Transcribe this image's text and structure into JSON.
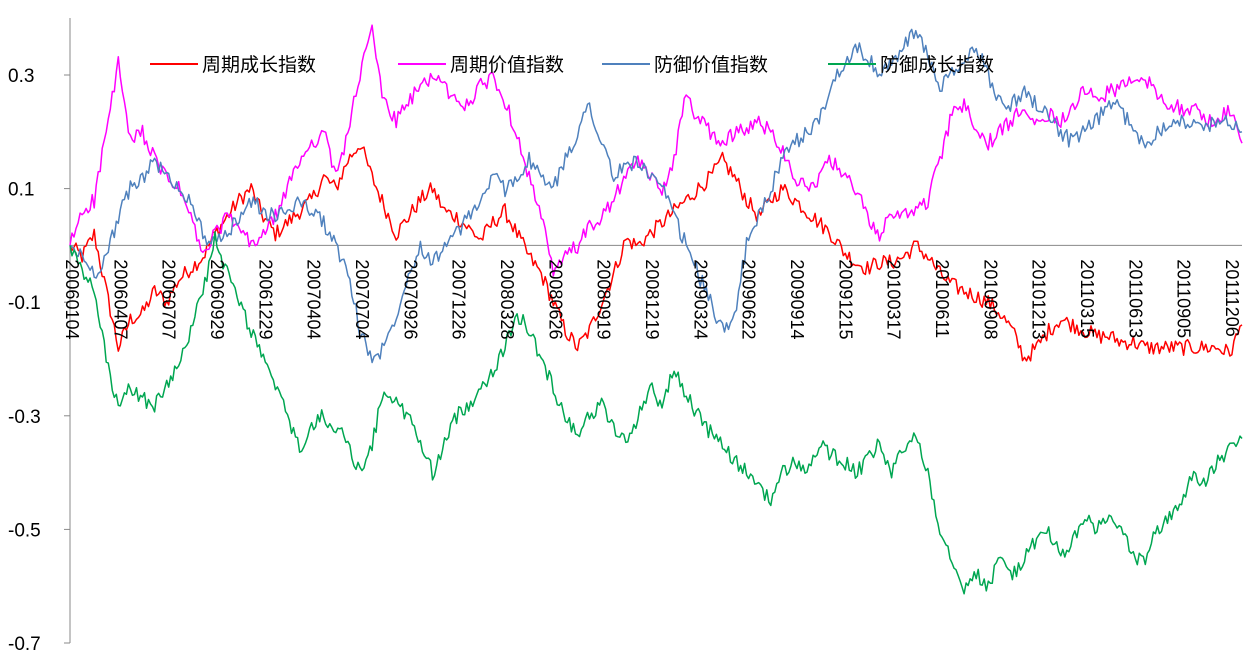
{
  "chart_data": {
    "type": "line",
    "ylim": [
      -0.7,
      0.4
    ],
    "y_ticks": [
      0.3,
      0.1,
      -0.1,
      -0.3,
      -0.5,
      -0.7
    ],
    "y_tick_labels": [
      "0.3",
      "0.1",
      "-0.1",
      "-0.3",
      "-0.5",
      "-0.7"
    ],
    "x_tick_labels": [
      "20060104",
      "20060407",
      "20060707",
      "20060929",
      "20061229",
      "20070404",
      "20070704",
      "20070926",
      "20071226",
      "20080328",
      "20080626",
      "20080919",
      "20081219",
      "20090324",
      "20090622",
      "20090914",
      "20091215",
      "20100317",
      "20100611",
      "20100908",
      "20101213",
      "20110315",
      "20110613",
      "20110905",
      "20111206"
    ],
    "grid": false,
    "legend_position": "top",
    "series": [
      {
        "name": "周期成长指数",
        "color": "#FF0000",
        "values": [
          0,
          -0.02,
          0.02,
          -0.08,
          -0.18,
          -0.13,
          -0.12,
          -0.08,
          -0.1,
          -0.06,
          -0.04,
          -0.02,
          0.02,
          0.05,
          0.08,
          0.1,
          0.05,
          0.02,
          0.04,
          0.06,
          0.08,
          0.12,
          0.1,
          0.15,
          0.18,
          0.12,
          0.07,
          0.02,
          0.05,
          0.08,
          0.1,
          0.06,
          0.05,
          0.03,
          0.01,
          0.04,
          0.06,
          0.02,
          -0.02,
          -0.05,
          -0.1,
          -0.15,
          -0.18,
          -0.15,
          -0.1,
          -0.05,
          0.01,
          0.0,
          0.02,
          0.04,
          0.06,
          0.08,
          0.1,
          0.12,
          0.15,
          0.12,
          0.08,
          0.05,
          0.08,
          0.1,
          0.08,
          0.06,
          0.04,
          0.02,
          -0.01,
          -0.03,
          -0.04,
          -0.03,
          -0.03,
          -0.02,
          0.0,
          -0.02,
          -0.05,
          -0.07,
          -0.08,
          -0.09,
          -0.1,
          -0.12,
          -0.15,
          -0.2,
          -0.18,
          -0.15,
          -0.13,
          -0.14,
          -0.15,
          -0.16,
          -0.16,
          -0.17,
          -0.17,
          -0.18,
          -0.18,
          -0.18,
          -0.18,
          -0.18,
          -0.18,
          -0.18,
          -0.19,
          -0.14
        ]
      },
      {
        "name": "周期价值指数",
        "color": "#FF00FF",
        "values": [
          0,
          0.06,
          0.08,
          0.2,
          0.32,
          0.18,
          0.2,
          0.15,
          0.12,
          0.1,
          0.05,
          -0.02,
          0.02,
          0.05,
          0.03,
          0.0,
          0.02,
          0.05,
          0.1,
          0.15,
          0.18,
          0.2,
          0.12,
          0.2,
          0.3,
          0.38,
          0.25,
          0.22,
          0.25,
          0.28,
          0.3,
          0.28,
          0.25,
          0.25,
          0.28,
          0.3,
          0.25,
          0.2,
          0.12,
          0.05,
          -0.05,
          -0.02,
          0.0,
          0.03,
          0.05,
          0.08,
          0.12,
          0.15,
          0.12,
          0.1,
          0.15,
          0.27,
          0.22,
          0.2,
          0.18,
          0.2,
          0.2,
          0.22,
          0.2,
          0.17,
          0.12,
          0.1,
          0.12,
          0.15,
          0.12,
          0.1,
          0.05,
          0.02,
          0.05,
          0.06,
          0.06,
          0.08,
          0.15,
          0.23,
          0.25,
          0.2,
          0.18,
          0.2,
          0.22,
          0.25,
          0.22,
          0.23,
          0.22,
          0.25,
          0.27,
          0.26,
          0.27,
          0.28,
          0.29,
          0.29,
          0.27,
          0.25,
          0.24,
          0.24,
          0.22,
          0.22,
          0.24,
          0.18
        ]
      },
      {
        "name": "防御价值指数",
        "color": "#4F81BD",
        "values": [
          0,
          -0.02,
          -0.05,
          -0.02,
          0.05,
          0.1,
          0.12,
          0.15,
          0.12,
          0.1,
          0.08,
          0.02,
          0.0,
          0.02,
          0.05,
          0.08,
          0.06,
          0.05,
          0.06,
          0.08,
          0.06,
          0.04,
          0.0,
          -0.05,
          -0.15,
          -0.2,
          -0.18,
          -0.12,
          -0.05,
          0.0,
          -0.03,
          0.0,
          0.02,
          0.05,
          0.08,
          0.12,
          0.1,
          0.12,
          0.15,
          0.12,
          0.1,
          0.15,
          0.2,
          0.25,
          0.18,
          0.12,
          0.14,
          0.15,
          0.12,
          0.1,
          0.05,
          0.0,
          -0.05,
          -0.1,
          -0.15,
          -0.12,
          0.0,
          0.05,
          0.1,
          0.15,
          0.18,
          0.2,
          0.22,
          0.28,
          0.32,
          0.35,
          0.33,
          0.3,
          0.32,
          0.35,
          0.38,
          0.33,
          0.28,
          0.3,
          0.32,
          0.35,
          0.3,
          0.25,
          0.25,
          0.27,
          0.25,
          0.23,
          0.2,
          0.18,
          0.2,
          0.22,
          0.25,
          0.24,
          0.2,
          0.18,
          0.2,
          0.22,
          0.22,
          0.21,
          0.21,
          0.22,
          0.22,
          0.2
        ]
      },
      {
        "name": "防御成长指数",
        "color": "#00A651",
        "values": [
          0,
          -0.05,
          -0.08,
          -0.2,
          -0.29,
          -0.25,
          -0.27,
          -0.28,
          -0.25,
          -0.2,
          -0.15,
          -0.08,
          0.01,
          -0.05,
          -0.1,
          -0.15,
          -0.2,
          -0.25,
          -0.3,
          -0.36,
          -0.32,
          -0.3,
          -0.32,
          -0.35,
          -0.4,
          -0.35,
          -0.25,
          -0.28,
          -0.3,
          -0.35,
          -0.4,
          -0.35,
          -0.3,
          -0.28,
          -0.25,
          -0.22,
          -0.18,
          -0.12,
          -0.15,
          -0.2,
          -0.25,
          -0.3,
          -0.33,
          -0.3,
          -0.28,
          -0.32,
          -0.35,
          -0.3,
          -0.25,
          -0.28,
          -0.22,
          -0.26,
          -0.3,
          -0.33,
          -0.35,
          -0.38,
          -0.4,
          -0.42,
          -0.45,
          -0.4,
          -0.38,
          -0.4,
          -0.35,
          -0.37,
          -0.38,
          -0.4,
          -0.38,
          -0.35,
          -0.4,
          -0.36,
          -0.33,
          -0.4,
          -0.5,
          -0.55,
          -0.6,
          -0.58,
          -0.6,
          -0.55,
          -0.58,
          -0.55,
          -0.52,
          -0.5,
          -0.55,
          -0.52,
          -0.48,
          -0.5,
          -0.48,
          -0.5,
          -0.55,
          -0.55,
          -0.5,
          -0.48,
          -0.45,
          -0.4,
          -0.42,
          -0.38,
          -0.36,
          -0.34
        ]
      }
    ]
  }
}
